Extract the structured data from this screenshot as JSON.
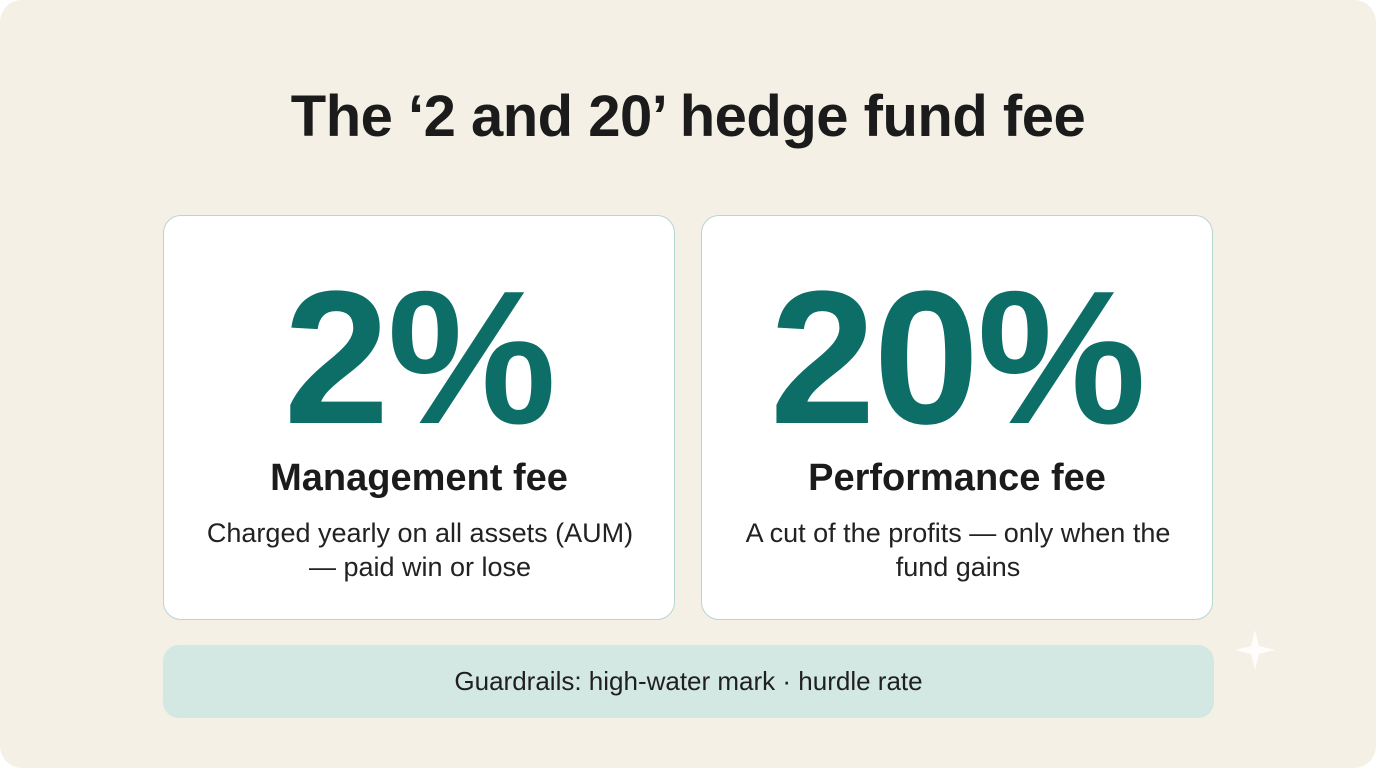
{
  "title": "The ‘2 and 20’ hedge fund fee",
  "cards": [
    {
      "value": "2%",
      "label": "Management fee",
      "description": "Charged yearly on all assets (AUM) — paid win or lose"
    },
    {
      "value": "20%",
      "label": "Performance fee",
      "description": "A cut of the profits — only when the fund gains"
    }
  ],
  "footer": {
    "text": "Guardrails: high-water mark · hurdle rate"
  },
  "colors": {
    "background": "#f4f0e6",
    "accent": "#0d6e67",
    "card_border": "#b6d6d2",
    "banner": "#d3e8e3",
    "text": "#1b1b1b"
  },
  "icons": {
    "corner_mark": "sparkle-icon"
  }
}
